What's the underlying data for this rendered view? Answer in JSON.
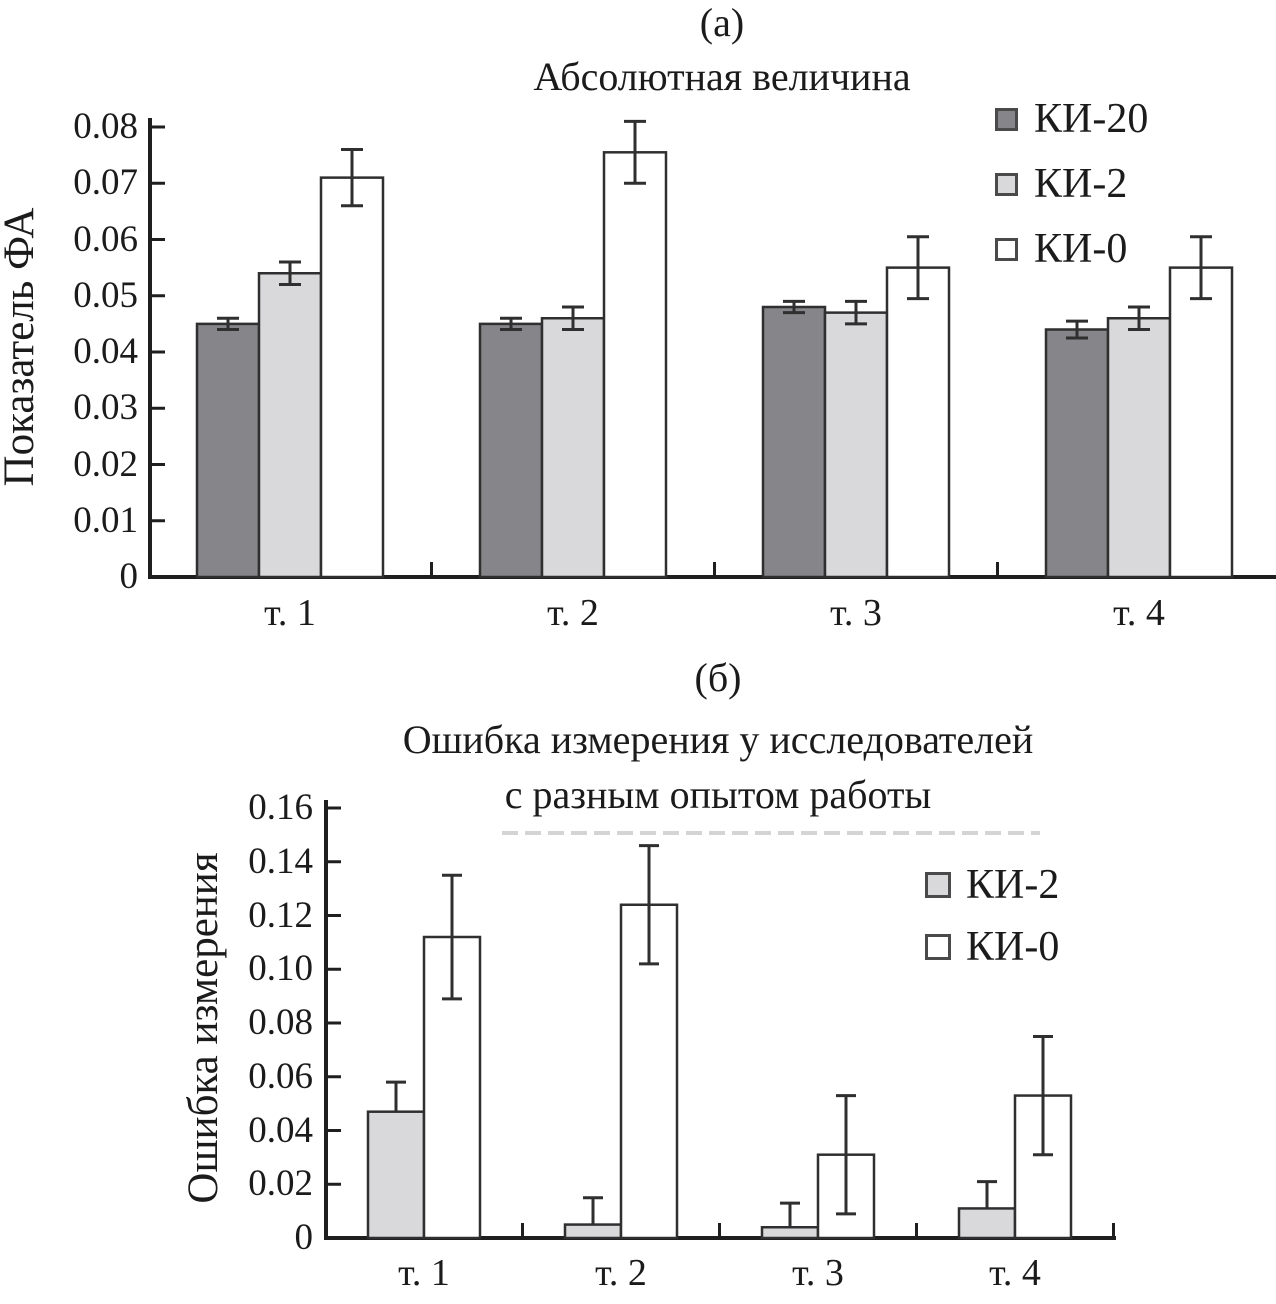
{
  "colors": {
    "background": "#ffffff",
    "axis": "#1f1f1f",
    "text": "#1b1b1b",
    "bar_outline": "#2f2f2f",
    "error_bar": "#2f2f2f",
    "swatch_border": "#4a4a4a",
    "dark_gray_fill": "#86868a",
    "light_gray_fill": "#d9d9db",
    "white_fill": "#ffffff"
  },
  "chart_data": [
    {
      "panel_label": "(а)",
      "type": "bar",
      "title": "Абсолютная величина",
      "ylabel": "Показатель ФА",
      "xlabel": "",
      "categories": [
        "т. 1",
        "т. 2",
        "т. 3",
        "т. 4"
      ],
      "series": [
        {
          "name": "КИ-20",
          "fill": "#86868a",
          "values": [
            0.045,
            0.045,
            0.048,
            0.044
          ],
          "errors": [
            0.001,
            0.001,
            0.001,
            0.0015
          ],
          "error_caps": "both"
        },
        {
          "name": "КИ-2",
          "fill": "#d9d9db",
          "values": [
            0.054,
            0.046,
            0.047,
            0.046
          ],
          "errors": [
            0.002,
            0.002,
            0.002,
            0.002
          ],
          "error_caps": "both"
        },
        {
          "name": "КИ-0",
          "fill": "#ffffff",
          "values": [
            0.071,
            0.0755,
            0.055,
            0.055
          ],
          "errors": [
            0.005,
            0.0055,
            0.0055,
            0.0055
          ],
          "error_caps": "both"
        }
      ],
      "ylim": [
        0,
        0.08
      ],
      "ytick_labels": [
        "0",
        "0.01",
        "0.02",
        "0.03",
        "0.04",
        "0.05",
        "0.06",
        "0.07",
        "0.08"
      ],
      "grid": false,
      "legend_position": "upper-right"
    },
    {
      "panel_label": "(б)",
      "type": "bar",
      "title": "Ошибка измерения у исследователей",
      "subtitle": "с разным опытом работы",
      "ylabel": "Ошибка измерения",
      "xlabel": "",
      "categories": [
        "т. 1",
        "т. 2",
        "т. 3",
        "т. 4"
      ],
      "series": [
        {
          "name": "КИ-2",
          "fill": "#d9d9db",
          "values": [
            0.047,
            0.005,
            0.004,
            0.011
          ],
          "errors": [
            0.011,
            0.01,
            0.009,
            0.01
          ],
          "error_caps": "upper"
        },
        {
          "name": "КИ-0",
          "fill": "#ffffff",
          "values": [
            0.112,
            0.124,
            0.031,
            0.053
          ],
          "errors": [
            0.023,
            0.022,
            0.022,
            0.022
          ],
          "error_caps": "both"
        }
      ],
      "ylim": [
        0,
        0.16
      ],
      "ytick_labels": [
        "0",
        "0.02",
        "0.04",
        "0.06",
        "0.08",
        "0.10",
        "0.12",
        "0.14",
        "0.16"
      ],
      "grid": false,
      "legend_position": "right"
    }
  ]
}
